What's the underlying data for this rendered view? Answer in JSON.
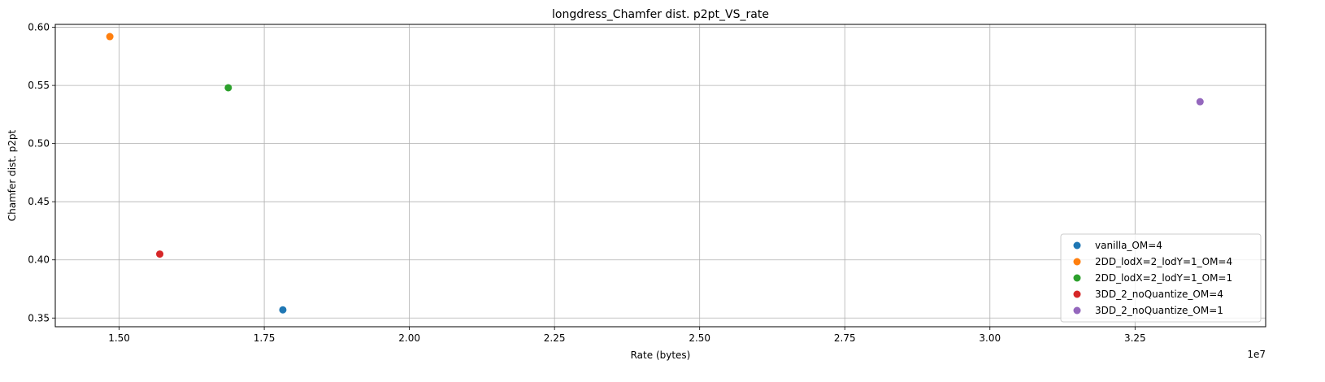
{
  "chart_data": {
    "type": "scatter",
    "title": "longdress_Chamfer dist. p2pt_VS_rate",
    "xlabel": "Rate (bytes)",
    "ylabel": "Chamfer dist. p2pt",
    "x_offset_label": "1e7",
    "x_scale": 10000000,
    "xlim": [
      1.39,
      3.475
    ],
    "ylim": [
      0.3425,
      0.6025
    ],
    "xticks": [
      1.5,
      1.75,
      2.0,
      2.25,
      2.5,
      2.75,
      3.0,
      3.25
    ],
    "xtick_labels": [
      "1.50",
      "1.75",
      "2.00",
      "2.25",
      "2.50",
      "2.75",
      "3.00",
      "3.25"
    ],
    "yticks": [
      0.35,
      0.4,
      0.45,
      0.5,
      0.55,
      0.6
    ],
    "ytick_labels": [
      "0.35",
      "0.40",
      "0.45",
      "0.50",
      "0.55",
      "0.60"
    ],
    "grid": true,
    "legend_position": "lower right",
    "series": [
      {
        "name": "vanilla_OM=4",
        "color": "#1f77b4",
        "points": [
          [
            1.782,
            0.357
          ]
        ]
      },
      {
        "name": "2DD_lodX=2_lodY=1_OM=4",
        "color": "#ff7f0e",
        "points": [
          [
            1.484,
            0.592
          ]
        ]
      },
      {
        "name": "2DD_lodX=2_lodY=1_OM=1",
        "color": "#2ca02c",
        "points": [
          [
            1.688,
            0.548
          ]
        ]
      },
      {
        "name": "3DD_2_noQuantize_OM=4",
        "color": "#d62728",
        "points": [
          [
            1.57,
            0.405
          ]
        ]
      },
      {
        "name": "3DD_2_noQuantize_OM=1",
        "color": "#9467bd",
        "points": [
          [
            3.362,
            0.536
          ]
        ]
      }
    ]
  }
}
